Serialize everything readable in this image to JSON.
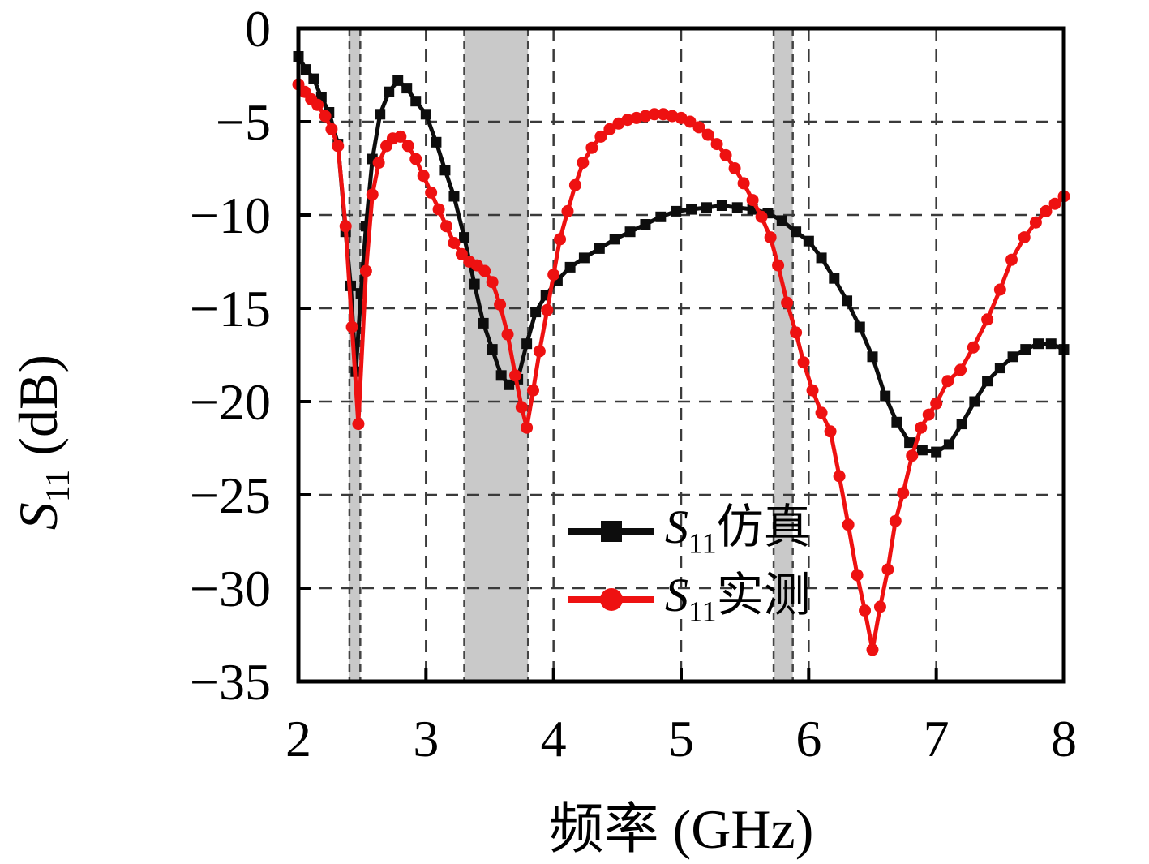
{
  "chart_data": {
    "type": "line",
    "title": "",
    "xlabel": "频率 (GHz)",
    "ylabel": "S11 (dB)",
    "ylabel_parts": {
      "var": "S",
      "sub": "11",
      "unit": " (dB)"
    },
    "xlim": [
      2,
      8
    ],
    "ylim": [
      -35,
      0
    ],
    "x_ticks": [
      2,
      3,
      4,
      5,
      6,
      7,
      8
    ],
    "y_ticks": [
      0,
      -5,
      -10,
      -15,
      -20,
      -25,
      -30,
      -35
    ],
    "grid": "dashed gridlines at every 1 GHz (x) and every 5 dB (y)",
    "legend_position": "inside, lower middle",
    "band_color": "#c9c9c9",
    "highlight_bands": [
      {
        "from": 2.4,
        "to": 2.485
      },
      {
        "from": 3.3,
        "to": 3.8
      },
      {
        "from": 5.725,
        "to": 5.875
      }
    ],
    "series": [
      {
        "name": "S11仿真",
        "label_parts": {
          "var": "S",
          "sub": "11",
          "rest": "仿真"
        },
        "color": "#0d0d0d",
        "marker": "square",
        "points": [
          [
            2.0,
            -1.5
          ],
          [
            2.06,
            -2.2
          ],
          [
            2.12,
            -2.7
          ],
          [
            2.18,
            -3.7
          ],
          [
            2.24,
            -4.5
          ],
          [
            2.31,
            -6.2
          ],
          [
            2.37,
            -10.9
          ],
          [
            2.41,
            -13.8
          ],
          [
            2.45,
            -18.4
          ],
          [
            2.49,
            -14.2
          ],
          [
            2.53,
            -10.6
          ],
          [
            2.58,
            -7.0
          ],
          [
            2.64,
            -4.6
          ],
          [
            2.71,
            -3.4
          ],
          [
            2.78,
            -2.8
          ],
          [
            2.85,
            -3.2
          ],
          [
            2.92,
            -3.9
          ],
          [
            3.0,
            -4.6
          ],
          [
            3.08,
            -6.1
          ],
          [
            3.15,
            -7.6
          ],
          [
            3.22,
            -9.0
          ],
          [
            3.3,
            -11.2
          ],
          [
            3.38,
            -13.7
          ],
          [
            3.45,
            -15.8
          ],
          [
            3.52,
            -17.2
          ],
          [
            3.59,
            -18.6
          ],
          [
            3.65,
            -19.1
          ],
          [
            3.72,
            -18.8
          ],
          [
            3.79,
            -16.9
          ],
          [
            3.86,
            -15.2
          ],
          [
            3.94,
            -14.3
          ],
          [
            4.03,
            -13.5
          ],
          [
            4.13,
            -12.8
          ],
          [
            4.24,
            -12.3
          ],
          [
            4.36,
            -11.8
          ],
          [
            4.48,
            -11.3
          ],
          [
            4.6,
            -10.9
          ],
          [
            4.72,
            -10.5
          ],
          [
            4.84,
            -10.1
          ],
          [
            4.96,
            -9.8
          ],
          [
            5.08,
            -9.7
          ],
          [
            5.2,
            -9.6
          ],
          [
            5.32,
            -9.5
          ],
          [
            5.44,
            -9.6
          ],
          [
            5.56,
            -9.7
          ],
          [
            5.68,
            -9.9
          ],
          [
            5.79,
            -10.3
          ],
          [
            5.9,
            -10.9
          ],
          [
            6.0,
            -11.4
          ],
          [
            6.1,
            -12.3
          ],
          [
            6.2,
            -13.4
          ],
          [
            6.3,
            -14.6
          ],
          [
            6.4,
            -16.0
          ],
          [
            6.5,
            -17.6
          ],
          [
            6.6,
            -19.7
          ],
          [
            6.69,
            -21.1
          ],
          [
            6.79,
            -22.2
          ],
          [
            6.89,
            -22.6
          ],
          [
            7.0,
            -22.7
          ],
          [
            7.1,
            -22.3
          ],
          [
            7.2,
            -21.2
          ],
          [
            7.3,
            -20.0
          ],
          [
            7.4,
            -18.9
          ],
          [
            7.5,
            -18.2
          ],
          [
            7.6,
            -17.6
          ],
          [
            7.7,
            -17.2
          ],
          [
            7.8,
            -16.9
          ],
          [
            7.9,
            -16.9
          ],
          [
            8.0,
            -17.2
          ]
        ]
      },
      {
        "name": "S11实测",
        "label_parts": {
          "var": "S",
          "sub": "11",
          "rest": "实测"
        },
        "color": "#ee1111",
        "marker": "circle",
        "points": [
          [
            2.0,
            -3.0
          ],
          [
            2.05,
            -3.4
          ],
          [
            2.1,
            -3.8
          ],
          [
            2.15,
            -4.1
          ],
          [
            2.21,
            -4.7
          ],
          [
            2.26,
            -5.4
          ],
          [
            2.31,
            -6.3
          ],
          [
            2.37,
            -10.6
          ],
          [
            2.42,
            -16.0
          ],
          [
            2.47,
            -21.2
          ],
          [
            2.53,
            -13.0
          ],
          [
            2.58,
            -8.9
          ],
          [
            2.63,
            -7.2
          ],
          [
            2.69,
            -6.3
          ],
          [
            2.74,
            -5.9
          ],
          [
            2.8,
            -5.8
          ],
          [
            2.86,
            -6.3
          ],
          [
            2.92,
            -7.0
          ],
          [
            2.98,
            -7.9
          ],
          [
            3.04,
            -8.8
          ],
          [
            3.1,
            -9.7
          ],
          [
            3.16,
            -10.6
          ],
          [
            3.22,
            -11.5
          ],
          [
            3.28,
            -12.1
          ],
          [
            3.34,
            -12.5
          ],
          [
            3.4,
            -12.7
          ],
          [
            3.46,
            -13.0
          ],
          [
            3.52,
            -13.6
          ],
          [
            3.58,
            -14.8
          ],
          [
            3.64,
            -16.4
          ],
          [
            3.7,
            -18.6
          ],
          [
            3.75,
            -20.3
          ],
          [
            3.79,
            -21.4
          ],
          [
            3.84,
            -19.4
          ],
          [
            3.89,
            -17.3
          ],
          [
            3.95,
            -15.1
          ],
          [
            4.0,
            -13.2
          ],
          [
            4.05,
            -11.3
          ],
          [
            4.11,
            -9.8
          ],
          [
            4.17,
            -8.4
          ],
          [
            4.23,
            -7.2
          ],
          [
            4.3,
            -6.4
          ],
          [
            4.37,
            -5.8
          ],
          [
            4.44,
            -5.4
          ],
          [
            4.51,
            -5.1
          ],
          [
            4.58,
            -4.9
          ],
          [
            4.65,
            -4.8
          ],
          [
            4.72,
            -4.7
          ],
          [
            4.79,
            -4.6
          ],
          [
            4.86,
            -4.6
          ],
          [
            4.93,
            -4.7
          ],
          [
            5.0,
            -4.8
          ],
          [
            5.07,
            -5.0
          ],
          [
            5.14,
            -5.3
          ],
          [
            5.21,
            -5.7
          ],
          [
            5.28,
            -6.2
          ],
          [
            5.35,
            -6.8
          ],
          [
            5.42,
            -7.5
          ],
          [
            5.49,
            -8.3
          ],
          [
            5.56,
            -9.2
          ],
          [
            5.63,
            -10.1
          ],
          [
            5.7,
            -11.2
          ],
          [
            5.76,
            -12.7
          ],
          [
            5.83,
            -14.7
          ],
          [
            5.9,
            -16.3
          ],
          [
            5.96,
            -17.9
          ],
          [
            6.03,
            -19.4
          ],
          [
            6.1,
            -20.6
          ],
          [
            6.17,
            -21.6
          ],
          [
            6.24,
            -24.0
          ],
          [
            6.31,
            -26.6
          ],
          [
            6.38,
            -29.3
          ],
          [
            6.44,
            -31.2
          ],
          [
            6.5,
            -33.3
          ],
          [
            6.56,
            -31.0
          ],
          [
            6.62,
            -29.0
          ],
          [
            6.68,
            -26.4
          ],
          [
            6.74,
            -24.9
          ],
          [
            6.81,
            -22.9
          ],
          [
            6.88,
            -21.4
          ],
          [
            6.94,
            -20.7
          ],
          [
            7.0,
            -20.1
          ],
          [
            7.09,
            -18.9
          ],
          [
            7.19,
            -18.3
          ],
          [
            7.29,
            -17.1
          ],
          [
            7.4,
            -15.6
          ],
          [
            7.5,
            -14.0
          ],
          [
            7.59,
            -12.4
          ],
          [
            7.69,
            -11.2
          ],
          [
            7.78,
            -10.4
          ],
          [
            7.86,
            -9.8
          ],
          [
            7.93,
            -9.4
          ],
          [
            8.0,
            -9.0
          ]
        ]
      }
    ]
  }
}
